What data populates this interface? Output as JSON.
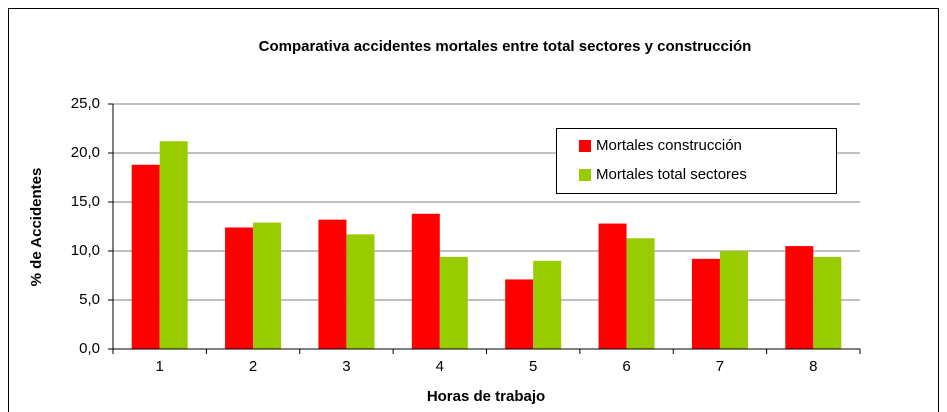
{
  "chart_data": {
    "type": "bar",
    "title": "Comparativa accidentes mortales entre total sectores y construcción",
    "x_label": "Horas de trabajo",
    "y_label": "% de Accidentes",
    "categories": [
      "1",
      "2",
      "3",
      "4",
      "5",
      "6",
      "7",
      "8"
    ],
    "series": [
      {
        "name": "Mortales construcción",
        "color": "#ff0000",
        "values": [
          18.8,
          12.4,
          13.2,
          13.8,
          7.1,
          12.8,
          9.2,
          10.5
        ]
      },
      {
        "name": "Mortales total sectores",
        "color": "#99cc00",
        "values": [
          21.2,
          12.9,
          11.7,
          9.4,
          9.0,
          11.3,
          10.0,
          9.4
        ]
      }
    ],
    "ylim": [
      0,
      25
    ],
    "yticks": [
      {
        "value": 0,
        "label": "0,0"
      },
      {
        "value": 5,
        "label": "5,0"
      },
      {
        "value": 10,
        "label": "10,0"
      },
      {
        "value": 15,
        "label": "15,0"
      },
      {
        "value": 20,
        "label": "20,0"
      },
      {
        "value": 25,
        "label": "25,0"
      }
    ],
    "grid": true,
    "legend_position": "upper right"
  }
}
